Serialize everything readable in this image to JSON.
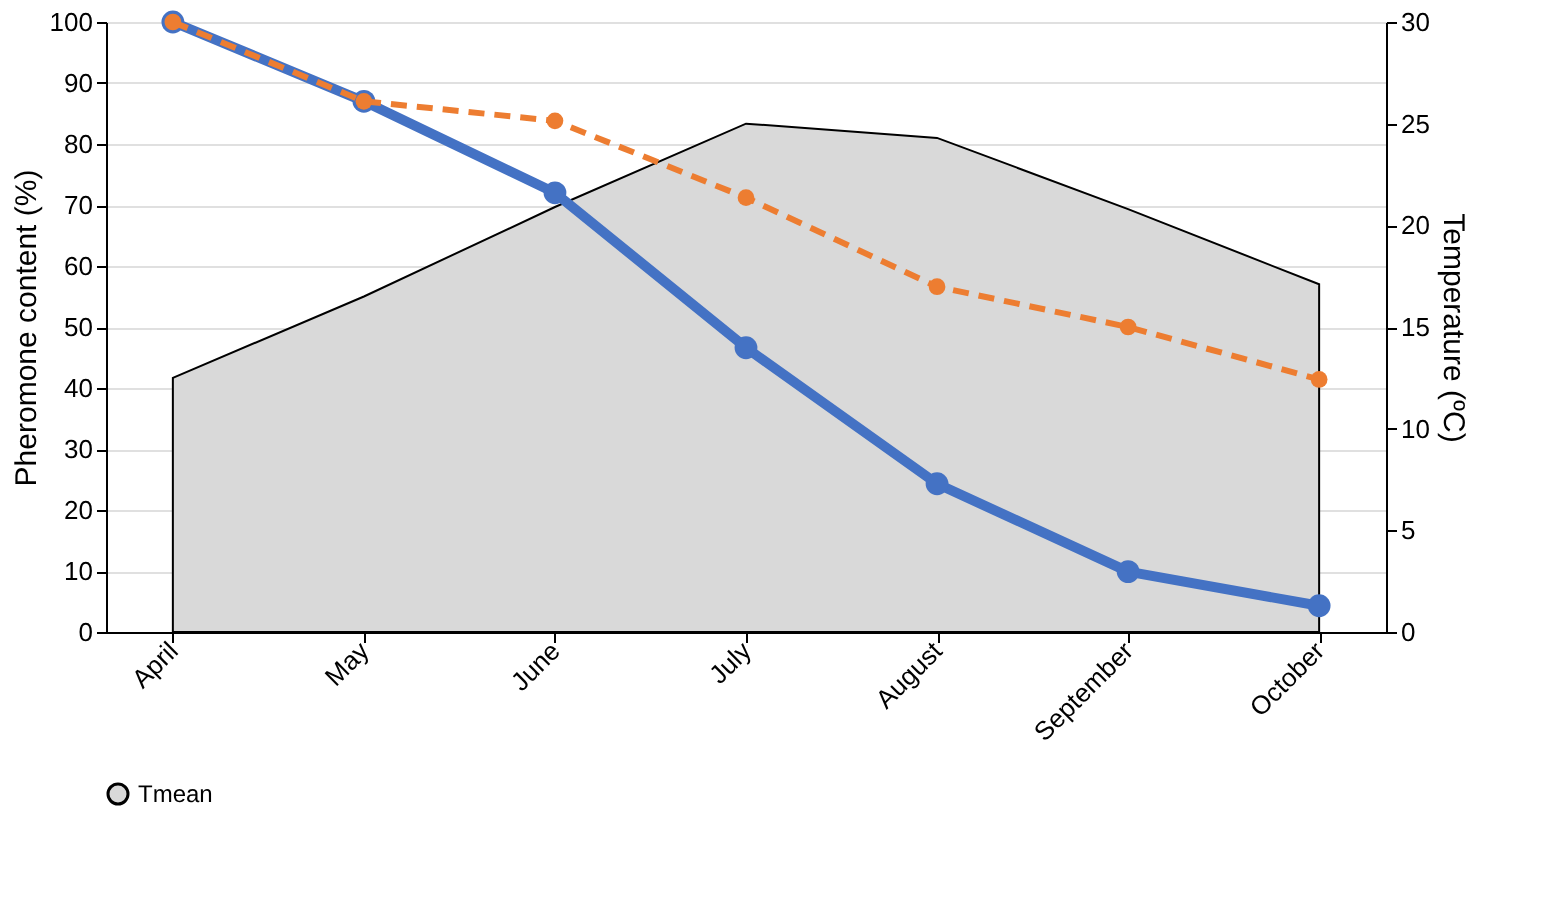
{
  "chart_data": {
    "type": "line",
    "categories": [
      "April",
      "May",
      "June",
      "July",
      "August",
      "September",
      "October"
    ],
    "ylabel": "Pheromone content (%)",
    "y2label": "Temperature (ºC)",
    "ylim": [
      0,
      100
    ],
    "yticks": [
      0,
      10,
      20,
      30,
      40,
      50,
      60,
      70,
      80,
      90,
      100
    ],
    "y2lim": [
      0,
      30
    ],
    "y2ticks": [
      0,
      5,
      10,
      15,
      20,
      25,
      30
    ],
    "grid": "y",
    "legend": "bottom",
    "series": [
      {
        "name": "Tmean",
        "type": "area",
        "axis": "y2",
        "color": "#d9d9d9",
        "values": [
          12.5,
          16.5,
          20.9,
          25,
          24.3,
          20.8,
          17.1
        ]
      },
      {
        "color": "#4472c4",
        "line_style": "solid",
        "marker": "circle",
        "values": [
          100,
          87,
          72,
          46.6,
          24.3,
          9.9,
          4.3
        ]
      },
      {
        "color": "#ed7d31",
        "line_style": "dashed",
        "marker": "circle",
        "values": [
          100,
          87,
          83.8,
          71.2,
          56.6,
          50,
          41.4
        ]
      }
    ]
  }
}
